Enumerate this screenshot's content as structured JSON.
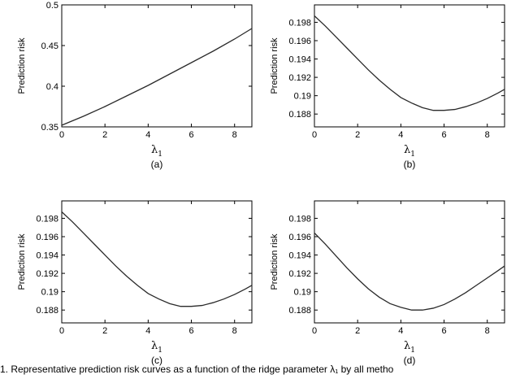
{
  "caption": "1.   Representative prediction risk curves as a function of the ridge parameter λ₁ by all metho",
  "chart_data": [
    {
      "type": "line",
      "panel_label": "(a)",
      "xlabel": "λ",
      "xlabel_sub": "1",
      "ylabel": "Prediction risk",
      "xlim": [
        0,
        8.8
      ],
      "ylim": [
        0.35,
        0.5
      ],
      "xticks": [
        "0",
        "2",
        "4",
        "6",
        "8"
      ],
      "yticks": [
        "0.35",
        "0.4",
        "0.45",
        "0.5"
      ],
      "series": [
        {
          "x": [
            0,
            1,
            2,
            3,
            4,
            5,
            6,
            7,
            8,
            8.8
          ],
          "y": [
            0.352,
            0.363,
            0.375,
            0.388,
            0.401,
            0.415,
            0.429,
            0.443,
            0.458,
            0.471
          ]
        }
      ]
    },
    {
      "type": "line",
      "panel_label": "(b)",
      "xlabel": "λ",
      "xlabel_sub": "1",
      "ylabel": "Prediction risk",
      "xlim": [
        0,
        8.8
      ],
      "ylim": [
        0.1866,
        0.1999
      ],
      "xticks": [
        "0",
        "2",
        "4",
        "6",
        "8"
      ],
      "yticks": [
        "0.188",
        "0.19",
        "0.192",
        "0.194",
        "0.196",
        "0.198"
      ],
      "series": [
        {
          "x": [
            0,
            0.5,
            1,
            1.5,
            2,
            2.5,
            3,
            3.5,
            4,
            4.5,
            5,
            5.5,
            6,
            6.5,
            7,
            7.5,
            8,
            8.5,
            8.8
          ],
          "y": [
            0.1987,
            0.1976,
            0.1964,
            0.1952,
            0.194,
            0.1928,
            0.1917,
            0.1907,
            0.1898,
            0.1892,
            0.1887,
            0.1884,
            0.1884,
            0.1885,
            0.1888,
            0.1892,
            0.1897,
            0.1903,
            0.1907
          ]
        }
      ]
    },
    {
      "type": "line",
      "panel_label": "(c)",
      "xlabel": "λ",
      "xlabel_sub": "1",
      "ylabel": "Prediction risk",
      "xlim": [
        0,
        8.8
      ],
      "ylim": [
        0.1866,
        0.1999
      ],
      "xticks": [
        "0",
        "2",
        "4",
        "6",
        "8"
      ],
      "yticks": [
        "0.188",
        "0.19",
        "0.192",
        "0.194",
        "0.196",
        "0.198"
      ],
      "series": [
        {
          "x": [
            0,
            0.5,
            1,
            1.5,
            2,
            2.5,
            3,
            3.5,
            4,
            4.5,
            5,
            5.5,
            6,
            6.5,
            7,
            7.5,
            8,
            8.5,
            8.8
          ],
          "y": [
            0.1987,
            0.1976,
            0.1964,
            0.1952,
            0.194,
            0.1928,
            0.1917,
            0.1907,
            0.1898,
            0.1892,
            0.1887,
            0.1884,
            0.1884,
            0.1885,
            0.1888,
            0.1892,
            0.1897,
            0.1903,
            0.1907
          ]
        }
      ]
    },
    {
      "type": "line",
      "panel_label": "(d)",
      "xlabel": "λ",
      "xlabel_sub": "1",
      "ylabel": "Prediction risk",
      "xlim": [
        0,
        8.8
      ],
      "ylim": [
        0.1866,
        0.1999
      ],
      "xticks": [
        "0",
        "2",
        "4",
        "6",
        "8"
      ],
      "yticks": [
        "0.188",
        "0.19",
        "0.192",
        "0.194",
        "0.196",
        "0.198"
      ],
      "series": [
        {
          "x": [
            0,
            0.5,
            1,
            1.5,
            2,
            2.5,
            3,
            3.5,
            4,
            4.5,
            5,
            5.5,
            6,
            6.5,
            7,
            7.5,
            8,
            8.5,
            8.8
          ],
          "y": [
            0.1964,
            0.1952,
            0.1939,
            0.1926,
            0.1914,
            0.1903,
            0.1894,
            0.1887,
            0.1883,
            0.188,
            0.188,
            0.1882,
            0.1886,
            0.1892,
            0.1899,
            0.1907,
            0.1915,
            0.1923,
            0.1928
          ]
        }
      ]
    }
  ]
}
